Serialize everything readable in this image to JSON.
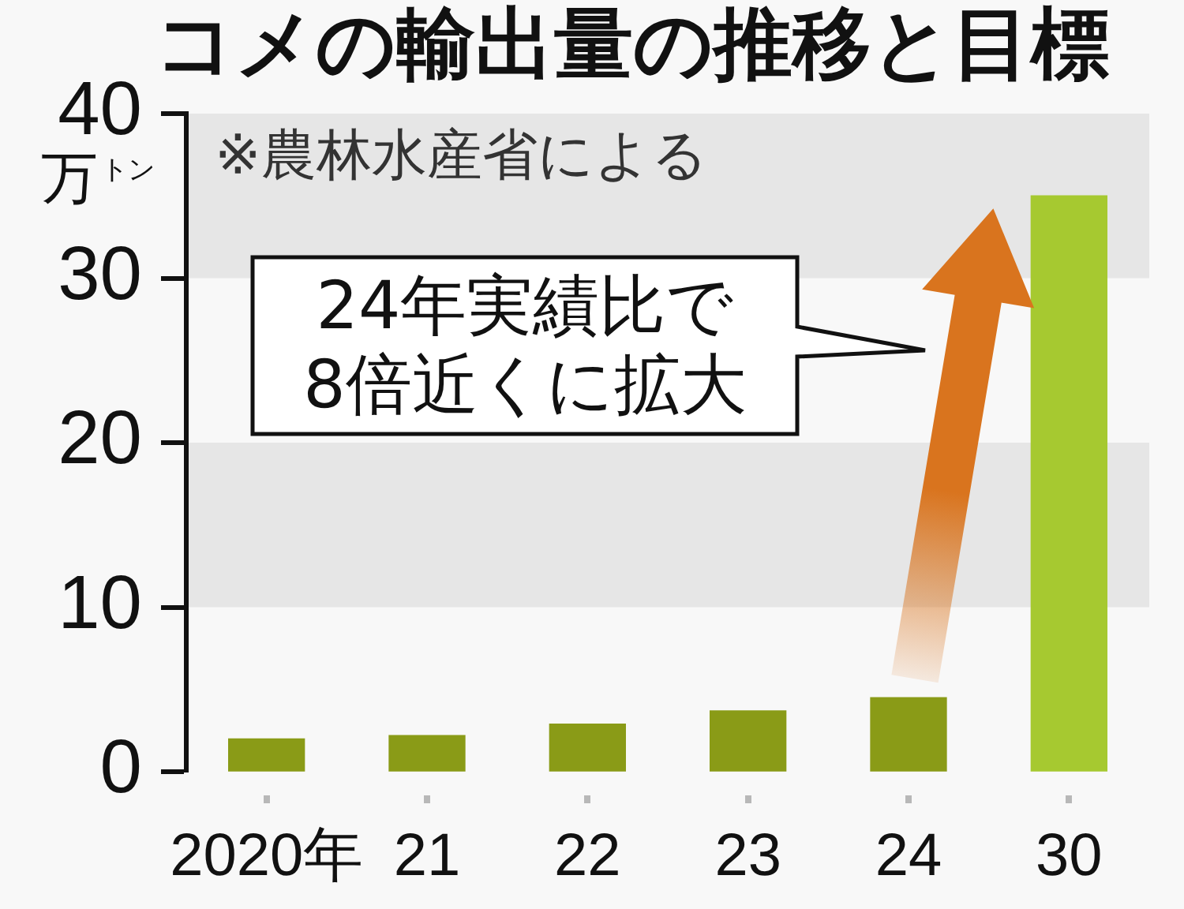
{
  "chart_data": {
    "type": "bar",
    "title": "コメの輸出量の推移と目標",
    "ylabel": "万トン",
    "categories": [
      "2020年",
      "21",
      "22",
      "23",
      "24",
      "30"
    ],
    "values": [
      2.0,
      2.2,
      2.9,
      3.7,
      4.5,
      35
    ],
    "colors": [
      "#8a9b17",
      "#8a9b17",
      "#8a9b17",
      "#8a9b17",
      "#8a9b17",
      "#a6c930"
    ],
    "ylim": [
      0,
      40
    ],
    "yticks": [
      0,
      10,
      20,
      30,
      40
    ],
    "bands": [
      {
        "axis": "y",
        "from": 10,
        "to": 20,
        "color": "#e6e6e6"
      },
      {
        "axis": "y",
        "from": 30,
        "to": 40,
        "color": "#e6e6e6"
      }
    ],
    "annotations": [
      "※農林水産省による",
      "24年実績比で\n8倍近くに拡大"
    ]
  }
}
